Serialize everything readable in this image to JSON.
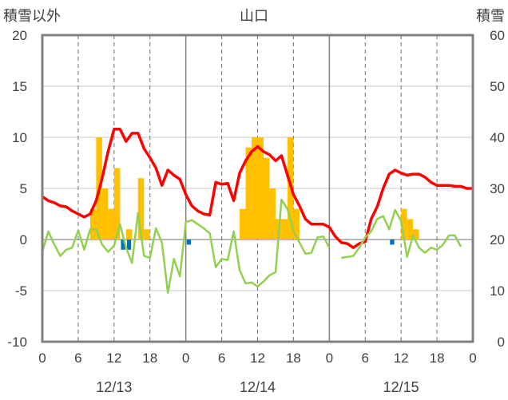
{
  "chart_data": {
    "type": "bar+line",
    "title": "山口",
    "y_left_label": "積雪以外",
    "y_right_label": "積雪",
    "y_left_range": [
      -10,
      20
    ],
    "y_left_ticks": [
      20,
      15,
      10,
      5,
      0,
      -5,
      -10
    ],
    "y_right_range": [
      0,
      60
    ],
    "y_right_ticks": [
      60,
      50,
      40,
      30,
      20,
      10,
      0
    ],
    "x_range_hours": [
      0,
      72
    ],
    "x_tick_labels": [
      "0",
      "6",
      "12",
      "18",
      "0",
      "6",
      "12",
      "18",
      "0",
      "6",
      "12",
      "18",
      "0"
    ],
    "date_labels": [
      "12/13",
      "12/14",
      "12/15"
    ],
    "grid": {
      "vertical_dashed_every_hours": 6,
      "horizontal_solid_at_left": [
        15,
        10,
        5,
        0,
        -5
      ]
    },
    "series": [
      {
        "kind": "bar",
        "color": "#FFC000",
        "hours": [
          8,
          9,
          10,
          11,
          12,
          13,
          14,
          15,
          16,
          17,
          18,
          19,
          20,
          21,
          22,
          23,
          24,
          25,
          26,
          27,
          28,
          29,
          30,
          31,
          32,
          33,
          34,
          35,
          36,
          37,
          38,
          39,
          40,
          41,
          42,
          43,
          44,
          45,
          46,
          47,
          48,
          49,
          50,
          51,
          52,
          53,
          54,
          55,
          56,
          57,
          58,
          59,
          60,
          61,
          62,
          63
        ],
        "values": [
          3,
          10,
          5,
          3,
          7,
          0,
          1,
          0,
          6,
          1,
          0,
          0,
          0,
          0,
          0,
          0,
          0,
          0,
          0,
          0,
          0,
          0,
          0,
          0,
          0,
          3,
          9,
          10,
          10,
          8,
          5,
          2,
          2,
          10,
          3,
          0,
          0,
          0,
          0,
          0,
          0,
          0,
          0,
          0,
          0,
          0,
          0,
          0,
          0,
          0,
          0,
          0,
          3,
          2,
          1,
          0
        ]
      },
      {
        "kind": "bar",
        "color": "#0070C0",
        "hours": [
          13,
          14,
          24,
          58
        ],
        "values": [
          -1,
          -1,
          -0.5,
          -0.5
        ]
      },
      {
        "kind": "line",
        "color": "#FF0000",
        "axis": "left",
        "hours": [
          0,
          1,
          2,
          3,
          4,
          5,
          6,
          7,
          8,
          9,
          10,
          11,
          12,
          13,
          14,
          15,
          16,
          17,
          18,
          19,
          20,
          21,
          22,
          23,
          24,
          25,
          26,
          27,
          28,
          29,
          30,
          31,
          32,
          33,
          34,
          35,
          36,
          37,
          38,
          39,
          40,
          41,
          42,
          43,
          44,
          45,
          46,
          47,
          48,
          49,
          50,
          51,
          52,
          53,
          54,
          55,
          56,
          57,
          58,
          59,
          60,
          61,
          62,
          63,
          64,
          65,
          66,
          67,
          68,
          69,
          70,
          71,
          72
        ],
        "values": [
          4.2,
          3.8,
          3.6,
          3.3,
          3.2,
          2.8,
          2.5,
          2.2,
          2.5,
          3.8,
          6,
          8.6,
          10.8,
          10.8,
          9.6,
          10.4,
          10.4,
          8.9,
          8,
          7,
          5.3,
          6.8,
          6.3,
          5.9,
          4.4,
          3.3,
          2.8,
          2.5,
          2.4,
          5.6,
          5.4,
          5.5,
          3.8,
          6.5,
          7.7,
          8.6,
          9.1,
          8.6,
          8.3,
          7.7,
          8.2,
          6.3,
          4.4,
          3.3,
          2,
          1.5,
          1.5,
          1.5,
          1.2,
          0.3,
          -0.3,
          -0.4,
          -0.8,
          -0.4,
          -0.2,
          2,
          3.2,
          5,
          6.4,
          6.8,
          6.5,
          6.3,
          6.4,
          6.4,
          6.1,
          5.6,
          5.3,
          5.3,
          5.3,
          5.2,
          5.2,
          5,
          5
        ]
      },
      {
        "kind": "line",
        "color": "#92D050",
        "axis": "left",
        "hours": [
          0,
          1,
          2,
          3,
          4,
          5,
          6,
          7,
          8,
          9,
          10,
          11,
          12,
          13,
          14,
          15,
          16,
          17,
          18,
          19,
          20,
          21,
          22,
          23,
          24,
          25,
          26,
          27,
          28,
          29,
          30,
          31,
          32,
          33,
          34,
          35,
          36,
          37,
          38,
          39,
          40,
          41,
          42,
          43,
          44,
          45,
          46,
          47,
          48,
          null,
          50,
          51,
          52,
          53,
          54,
          55,
          56,
          57,
          58,
          59,
          60,
          61,
          62,
          63,
          64,
          65,
          66,
          67,
          68,
          69,
          70,
          71,
          72
        ],
        "values": [
          -1.2,
          0.8,
          -0.5,
          -1.6,
          -1,
          -0.8,
          0.9,
          -1,
          1,
          1,
          -0.5,
          -1.2,
          -0.6,
          1.5,
          -0.8,
          -2.3,
          2.6,
          -1.6,
          -1.8,
          1.1,
          -0.3,
          -5.2,
          -1.9,
          -3.6,
          1.7,
          1.9,
          1.5,
          1.1,
          0.6,
          -2.7,
          -1.9,
          -2,
          0.8,
          -3,
          -4.3,
          -4.2,
          -4.6,
          -4.1,
          -3.5,
          -3.2,
          3.9,
          3,
          0.8,
          -0.3,
          -1.4,
          -1.3,
          0.2,
          0.3,
          -0.8,
          null,
          -1.8,
          -1.7,
          -1.6,
          -0.8,
          0.2,
          0.8,
          2,
          2.3,
          1,
          2.9,
          1.8,
          -1.7,
          0.4,
          -0.8,
          -1.3,
          -0.8,
          -1,
          -0.5,
          0.4,
          0.4,
          -0.7,
          null,
          null
        ]
      },
      {
        "kind": "line",
        "color": "#7030A0",
        "axis": "right",
        "hours": [
          0,
          72
        ],
        "values": [
          0,
          0
        ]
      }
    ]
  }
}
